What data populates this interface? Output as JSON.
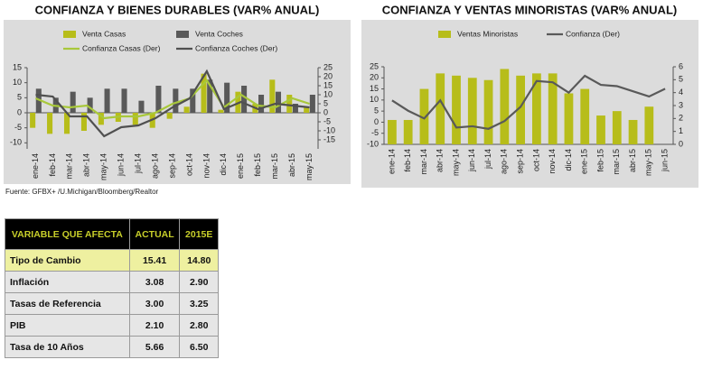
{
  "chart_data": [
    {
      "type": "bar",
      "title": "CONFIANZA Y BIENES DURABLES (VAR% ANUAL)",
      "categories": [
        "ene-14",
        "feb-14",
        "mar-14",
        "abr-14",
        "may-14",
        "jun-14",
        "jul-14",
        "ago-14",
        "sep-14",
        "oct-14",
        "nov-14",
        "dic-14",
        "ene-15",
        "feb-15",
        "mar-15",
        "abr-15",
        "may-15"
      ],
      "series": [
        {
          "name": "Venta Casas",
          "type": "bar",
          "color": "#b7bd1a",
          "values": [
            -5,
            -7,
            -7,
            -6,
            -4,
            -3,
            -4,
            -5,
            -2,
            2,
            13,
            1,
            7,
            3,
            11,
            6,
            2
          ]
        },
        {
          "name": "Venta Coches",
          "type": "bar",
          "color": "#595959",
          "values": [
            8,
            5,
            7,
            5,
            8,
            8,
            4,
            9,
            8,
            8,
            11,
            10,
            9,
            6,
            7,
            3,
            6
          ]
        },
        {
          "name": "Confianza Casas (Der)",
          "type": "line",
          "axis": "y2",
          "color": "#a8c83a",
          "values": [
            8,
            4,
            3,
            4,
            -3,
            -2,
            -2,
            0,
            5,
            8,
            18,
            3,
            10,
            4,
            3,
            8,
            5
          ]
        },
        {
          "name": "Confianza Coches (Der)",
          "type": "line",
          "axis": "y2",
          "color": "#505050",
          "values": [
            10,
            9,
            -2,
            -2,
            -13,
            -8,
            -7,
            -3,
            3,
            8,
            23,
            2,
            6,
            2,
            5,
            4,
            3
          ]
        }
      ],
      "ylim": [
        -12,
        15
      ],
      "yticks": [
        -10,
        -5,
        0,
        5,
        10,
        15
      ],
      "y2lim": [
        -20,
        25
      ],
      "y2ticks": [
        -15,
        -10,
        -5,
        0,
        5,
        10,
        15,
        20,
        25
      ]
    },
    {
      "type": "bar",
      "title": "CONFIANZA Y VENTAS MINORISTAS (VAR% ANUAL)",
      "categories": [
        "ene-14",
        "feb-14",
        "mar-14",
        "abr-14",
        "may-14",
        "jun-14",
        "jul-14",
        "ago-14",
        "sep-14",
        "oct-14",
        "nov-14",
        "dic-14",
        "ene-15",
        "feb-15",
        "mar-15",
        "abr-15",
        "may-15",
        "jun-15"
      ],
      "series": [
        {
          "name": "Ventas Minoristas",
          "type": "bar",
          "color": "#b7bd1a",
          "values": [
            1,
            1,
            15,
            22,
            21,
            20,
            19,
            24,
            21,
            22,
            22,
            13,
            15,
            3,
            5,
            1,
            7,
            null
          ]
        },
        {
          "name": "Confianza (Der)",
          "type": "line",
          "axis": "y2",
          "color": "#595959",
          "values": [
            3.4,
            2.6,
            2.0,
            3.4,
            1.3,
            1.4,
            1.2,
            1.8,
            2.9,
            4.9,
            4.8,
            4.0,
            5.3,
            4.6,
            4.5,
            4.1,
            3.7,
            4.3
          ]
        }
      ],
      "ylim": [
        -10,
        25
      ],
      "yticks": [
        -10,
        -5,
        0,
        5,
        10,
        15,
        20,
        25
      ],
      "y2lim": [
        0,
        6
      ],
      "y2ticks": [
        0,
        1,
        2,
        3,
        4,
        5,
        6
      ]
    }
  ],
  "source": "Fuente: GFBX+ /U.Michigan/Bloomberg/Realtor",
  "table": {
    "header": [
      "VARIABLE QUE AFECTA",
      "ACTUAL",
      "2015E"
    ],
    "rows": [
      [
        "Tipo de Cambio",
        "15.41",
        "14.80"
      ],
      [
        "Inflación",
        "3.08",
        "2.90"
      ],
      [
        "Tasas de Referencia",
        "3.00",
        "3.25"
      ],
      [
        "PIB",
        "2.10",
        "2.80"
      ],
      [
        "Tasa de 10 Años",
        "5.66",
        "6.50"
      ]
    ]
  }
}
